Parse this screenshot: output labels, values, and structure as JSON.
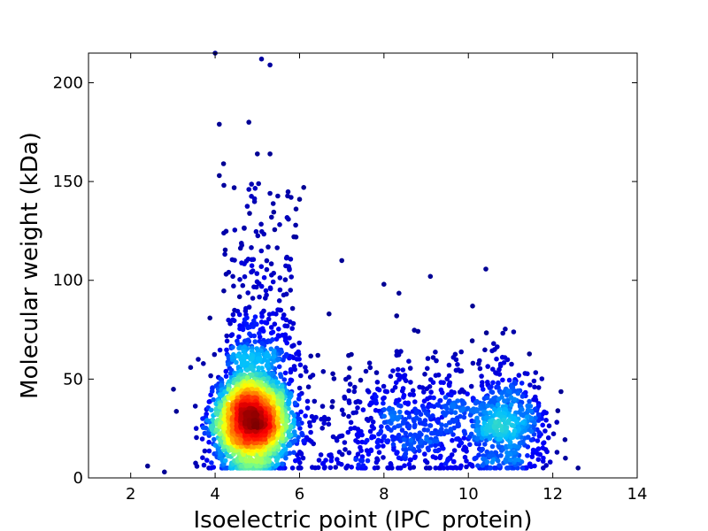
{
  "chart_data": {
    "type": "scatter",
    "xlabel": "Isoelectric point (IPC_protein)",
    "ylabel": "Molecular weight (kDa)",
    "xlim": [
      1,
      14
    ],
    "ylim": [
      0,
      215
    ],
    "x_ticks": [
      2,
      4,
      6,
      8,
      10,
      12,
      14
    ],
    "y_ticks": [
      0,
      50,
      100,
      150,
      200
    ],
    "grid": false,
    "color_encoding": "point density (jet colormap: blue = low, red = high)",
    "colormap": [
      "#00007f",
      "#0000ff",
      "#00bfff",
      "#7fff7f",
      "#ffff00",
      "#ff7f00",
      "#ff0000",
      "#7f0000"
    ],
    "clusters": [
      {
        "center_x": 4.9,
        "center_y": 28,
        "spread_x": 0.45,
        "spread_y": 12,
        "density": "very high"
      },
      {
        "center_x": 8.8,
        "center_y": 25,
        "spread_x": 1.0,
        "spread_y": 13,
        "density": "low"
      },
      {
        "center_x": 10.9,
        "center_y": 25,
        "spread_x": 0.5,
        "spread_y": 12,
        "density": "low"
      }
    ],
    "outliers": [
      {
        "x": 4.0,
        "y": 215
      },
      {
        "x": 5.1,
        "y": 212
      },
      {
        "x": 5.3,
        "y": 209
      },
      {
        "x": 4.8,
        "y": 180
      },
      {
        "x": 4.1,
        "y": 179
      },
      {
        "x": 5.0,
        "y": 164
      },
      {
        "x": 5.3,
        "y": 164
      },
      {
        "x": 4.2,
        "y": 159
      },
      {
        "x": 4.1,
        "y": 153
      },
      {
        "x": 6.1,
        "y": 147
      },
      {
        "x": 4.8,
        "y": 146
      },
      {
        "x": 5.3,
        "y": 144
      },
      {
        "x": 5.8,
        "y": 142
      },
      {
        "x": 6.0,
        "y": 141
      },
      {
        "x": 7.0,
        "y": 110
      },
      {
        "x": 9.1,
        "y": 102
      },
      {
        "x": 8.0,
        "y": 98
      },
      {
        "x": 10.1,
        "y": 87
      },
      {
        "x": 6.7,
        "y": 83
      },
      {
        "x": 2.4,
        "y": 6
      },
      {
        "x": 2.8,
        "y": 3
      },
      {
        "x": 12.6,
        "y": 5
      },
      {
        "x": 12.1,
        "y": 13
      },
      {
        "x": 12.3,
        "y": 10
      },
      {
        "x": 10.6,
        "y": 68
      },
      {
        "x": 8.3,
        "y": 82
      },
      {
        "x": 3.6,
        "y": 60
      }
    ]
  }
}
